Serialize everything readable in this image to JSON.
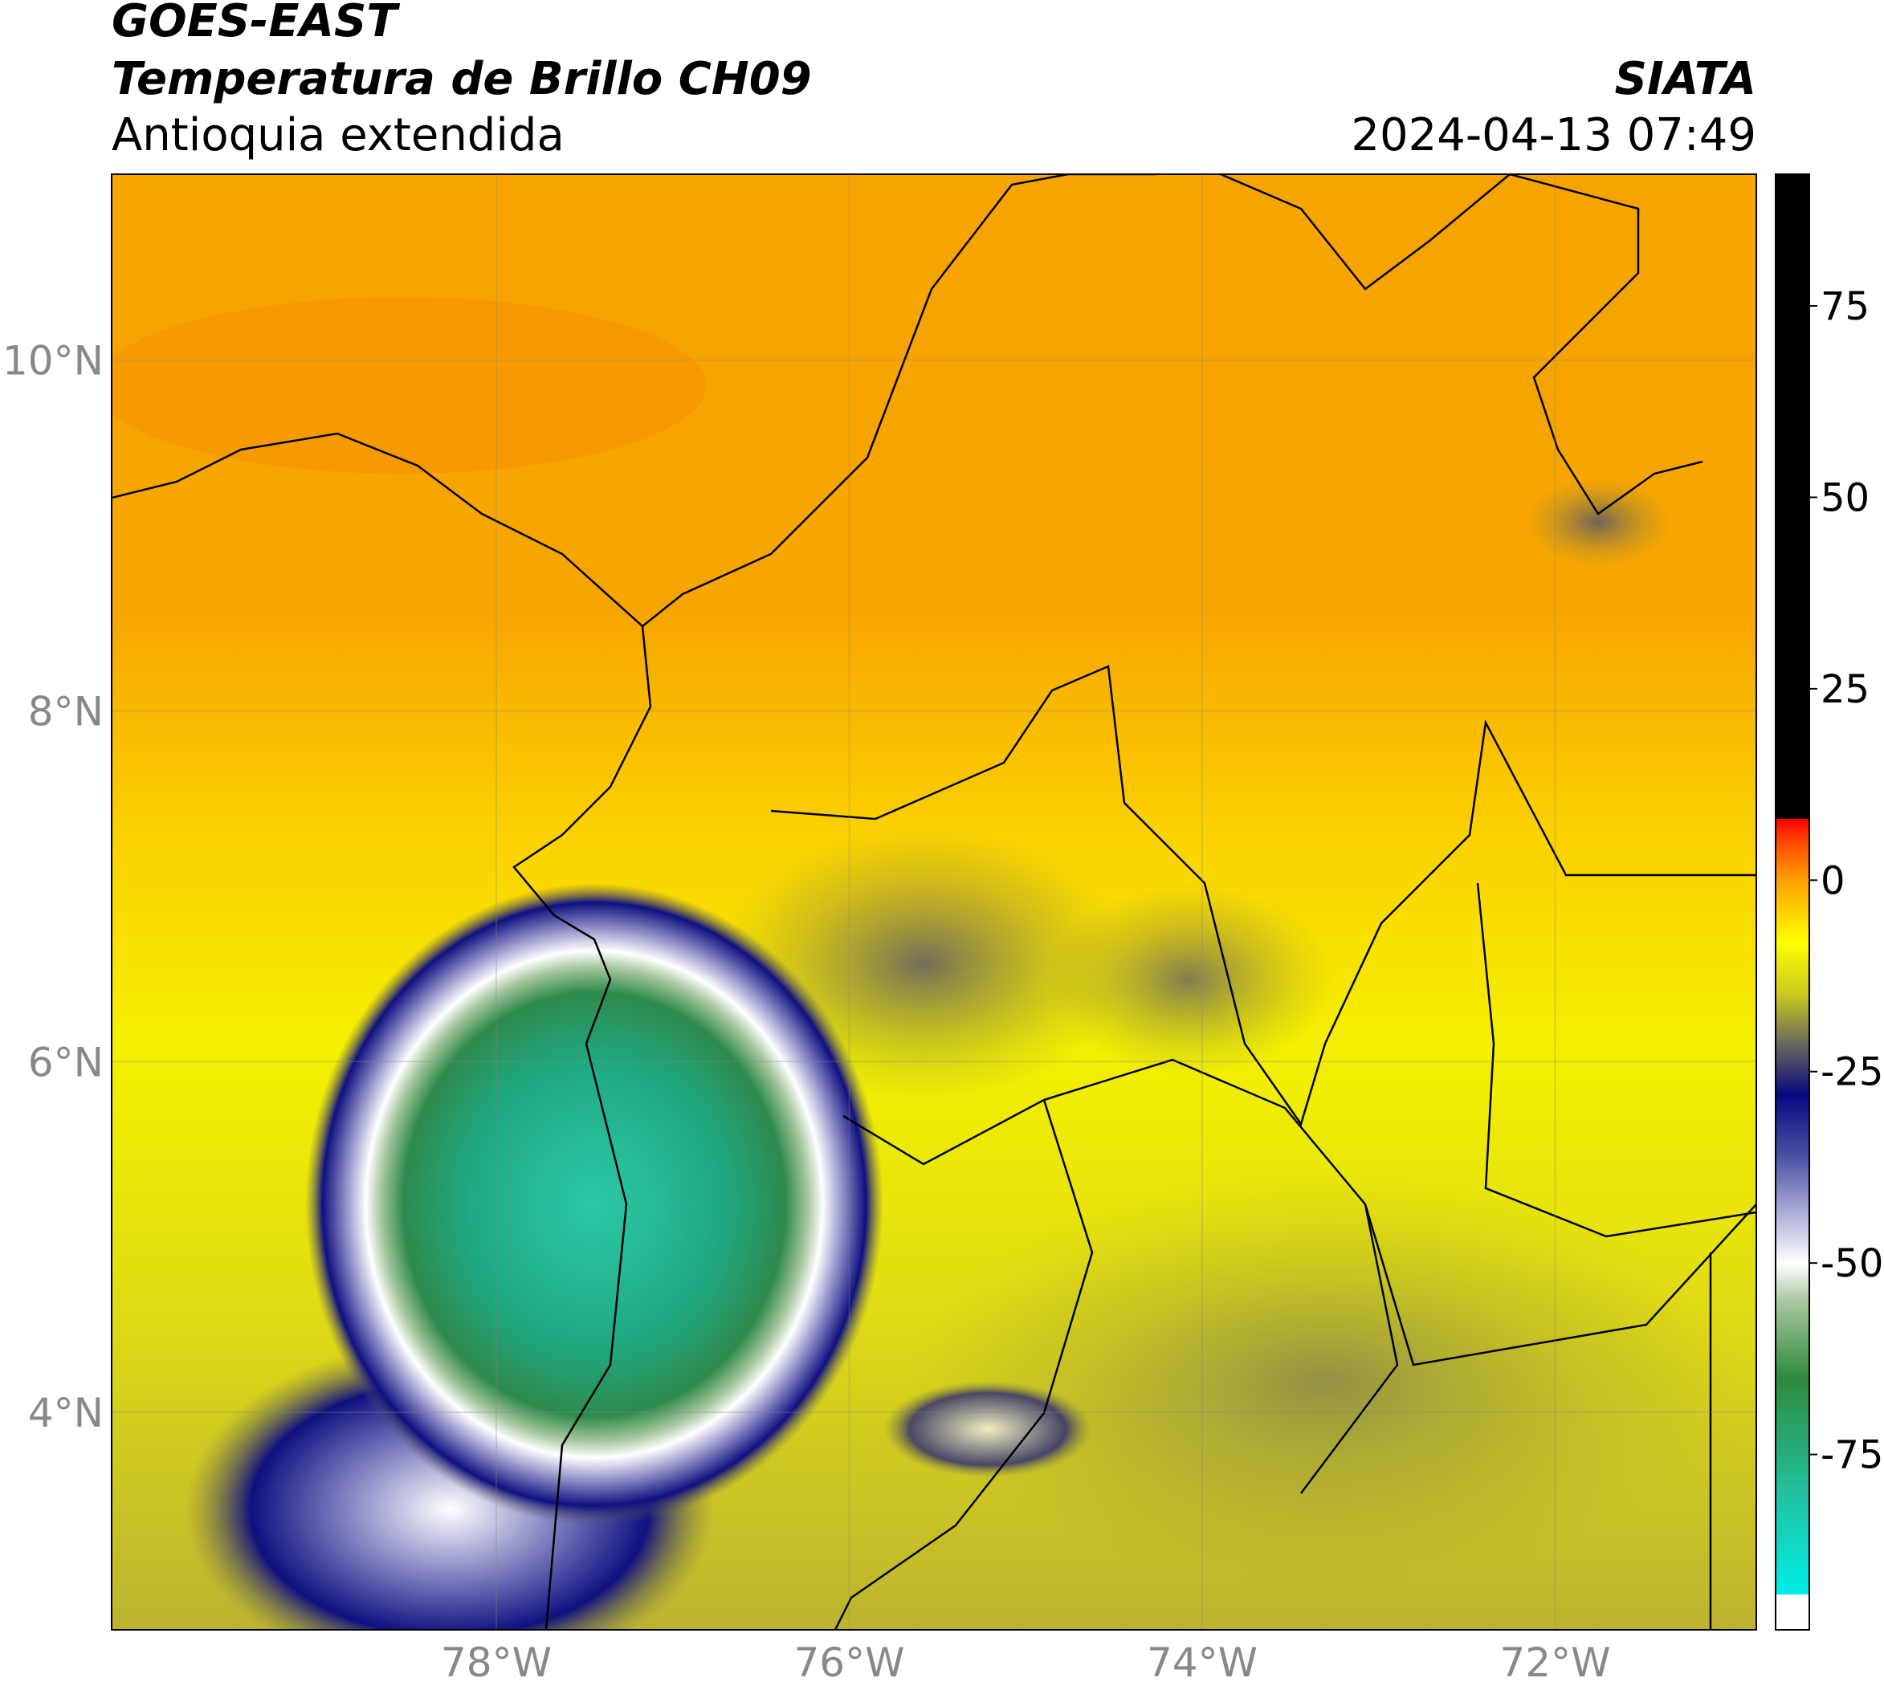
{
  "header": {
    "title": "GOES-EAST",
    "subtitle": "Temperatura de Brillo CH09",
    "region": "Antioquia extendida",
    "source": "SIATA",
    "datetime": "2024-04-13 07:49"
  },
  "map": {
    "xlim": [
      -80.18,
      -70.86
    ],
    "ylim": [
      2.76,
      11.06
    ],
    "xticks": [
      {
        "value": -78,
        "label": "78°W"
      },
      {
        "value": -76,
        "label": "76°W"
      },
      {
        "value": -74,
        "label": "74°W"
      },
      {
        "value": -72,
        "label": "72°W"
      }
    ],
    "yticks": [
      {
        "value": 4,
        "label": "4°N"
      },
      {
        "value": 6,
        "label": "6°N"
      },
      {
        "value": 8,
        "label": "8°N"
      },
      {
        "value": 10,
        "label": "10°N"
      }
    ],
    "grid": true
  },
  "colorbar": {
    "lim": [
      -97.9,
      92.2
    ],
    "ticks": [
      -75,
      -50,
      -25,
      0,
      25,
      50,
      75
    ],
    "colors": [
      [
        -97.9,
        "#ffffff"
      ],
      [
        -93.3,
        "#ffffff"
      ],
      [
        -93.3,
        "#00eee6"
      ],
      [
        -80,
        "#22c0a0"
      ],
      [
        -65,
        "#2e8a3c"
      ],
      [
        -55,
        "#a8c8a0"
      ],
      [
        -50,
        "#ffffff"
      ],
      [
        -44,
        "#b4b4dc"
      ],
      [
        -36,
        "#4a50a4"
      ],
      [
        -28,
        "#080880"
      ],
      [
        -22,
        "#606060"
      ],
      [
        -15,
        "#c8c820"
      ],
      [
        -8,
        "#ffff00"
      ],
      [
        0,
        "#ffa000"
      ],
      [
        5,
        "#ff4800"
      ],
      [
        8,
        "#ff0000"
      ],
      [
        8,
        "#000000"
      ],
      [
        92.2,
        "#000000"
      ]
    ]
  }
}
